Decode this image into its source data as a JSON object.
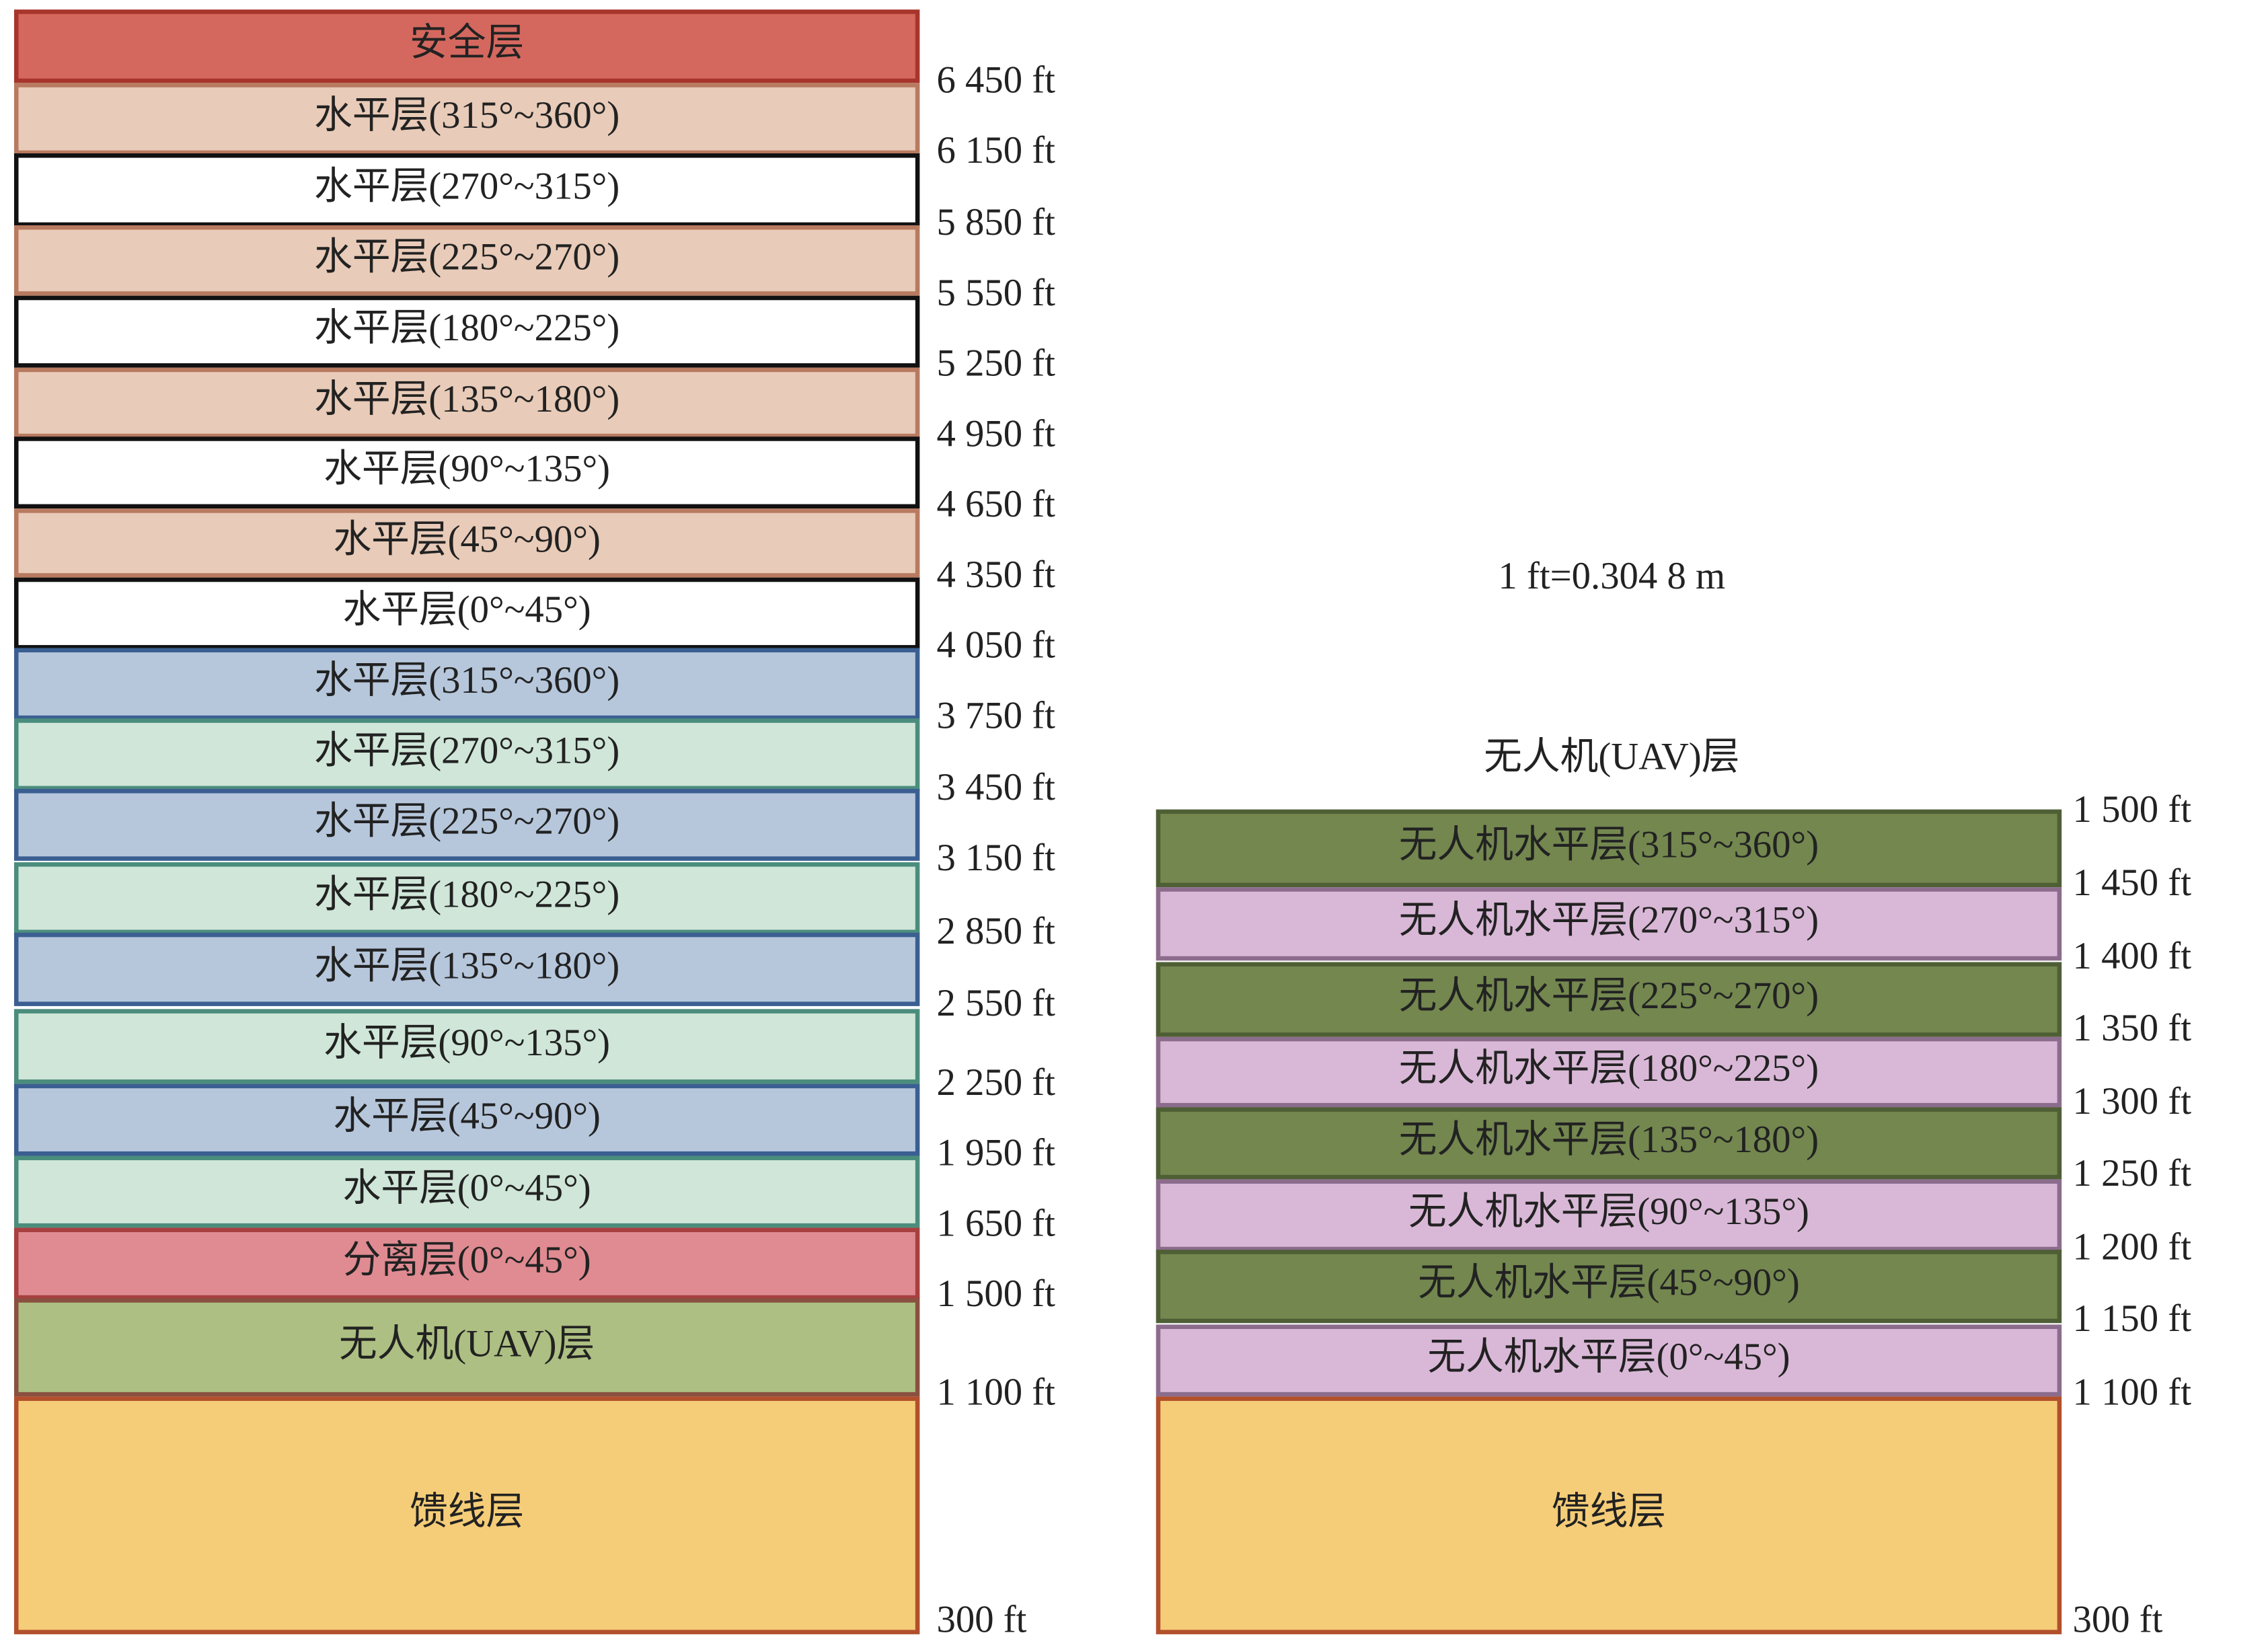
{
  "note": "1 ft=0.304 8 m",
  "left": {
    "layers": [
      "安全层",
      "水平层(315°~360°)",
      "水平层(270°~315°)",
      "水平层(225°~270°)",
      "水平层(180°~225°)",
      "水平层(135°~180°)",
      "水平层(90°~135°)",
      "水平层(45°~90°)",
      "水平层(0°~45°)",
      "水平层(315°~360°)",
      "水平层(270°~315°)",
      "水平层(225°~270°)",
      "水平层(180°~225°)",
      "水平层(135°~180°)",
      "水平层(90°~135°)",
      "水平层(45°~90°)",
      "水平层(0°~45°)",
      "分离层(0°~45°)",
      "无人机(UAV)层",
      "馈线层"
    ],
    "altitudes": [
      "6 450 ft",
      "6 150 ft",
      "5 850 ft",
      "5 550 ft",
      "5 250 ft",
      "4 950 ft",
      "4 650 ft",
      "4 350 ft",
      "4 050 ft",
      "3 750 ft",
      "3 450 ft",
      "3 150 ft",
      "2 850 ft",
      "2 550 ft",
      "2 250 ft",
      "1 950 ft",
      "1 650 ft",
      "1 500 ft",
      "1 100 ft",
      "300 ft"
    ]
  },
  "right": {
    "title": "无人机(UAV)层",
    "layers": [
      "无人机水平层(315°~360°)",
      "无人机水平层(270°~315°)",
      "无人机水平层(225°~270°)",
      "无人机水平层(180°~225°)",
      "无人机水平层(135°~180°)",
      "无人机水平层(90°~135°)",
      "无人机水平层(45°~90°)",
      "无人机水平层(0°~45°)",
      "馈线层"
    ],
    "altitudes": [
      "1 500 ft",
      "1 450 ft",
      "1 400 ft",
      "1 350 ft",
      "1 300 ft",
      "1 250 ft",
      "1 200 ft",
      "1 150 ft",
      "1 100 ft",
      "300 ft"
    ]
  }
}
